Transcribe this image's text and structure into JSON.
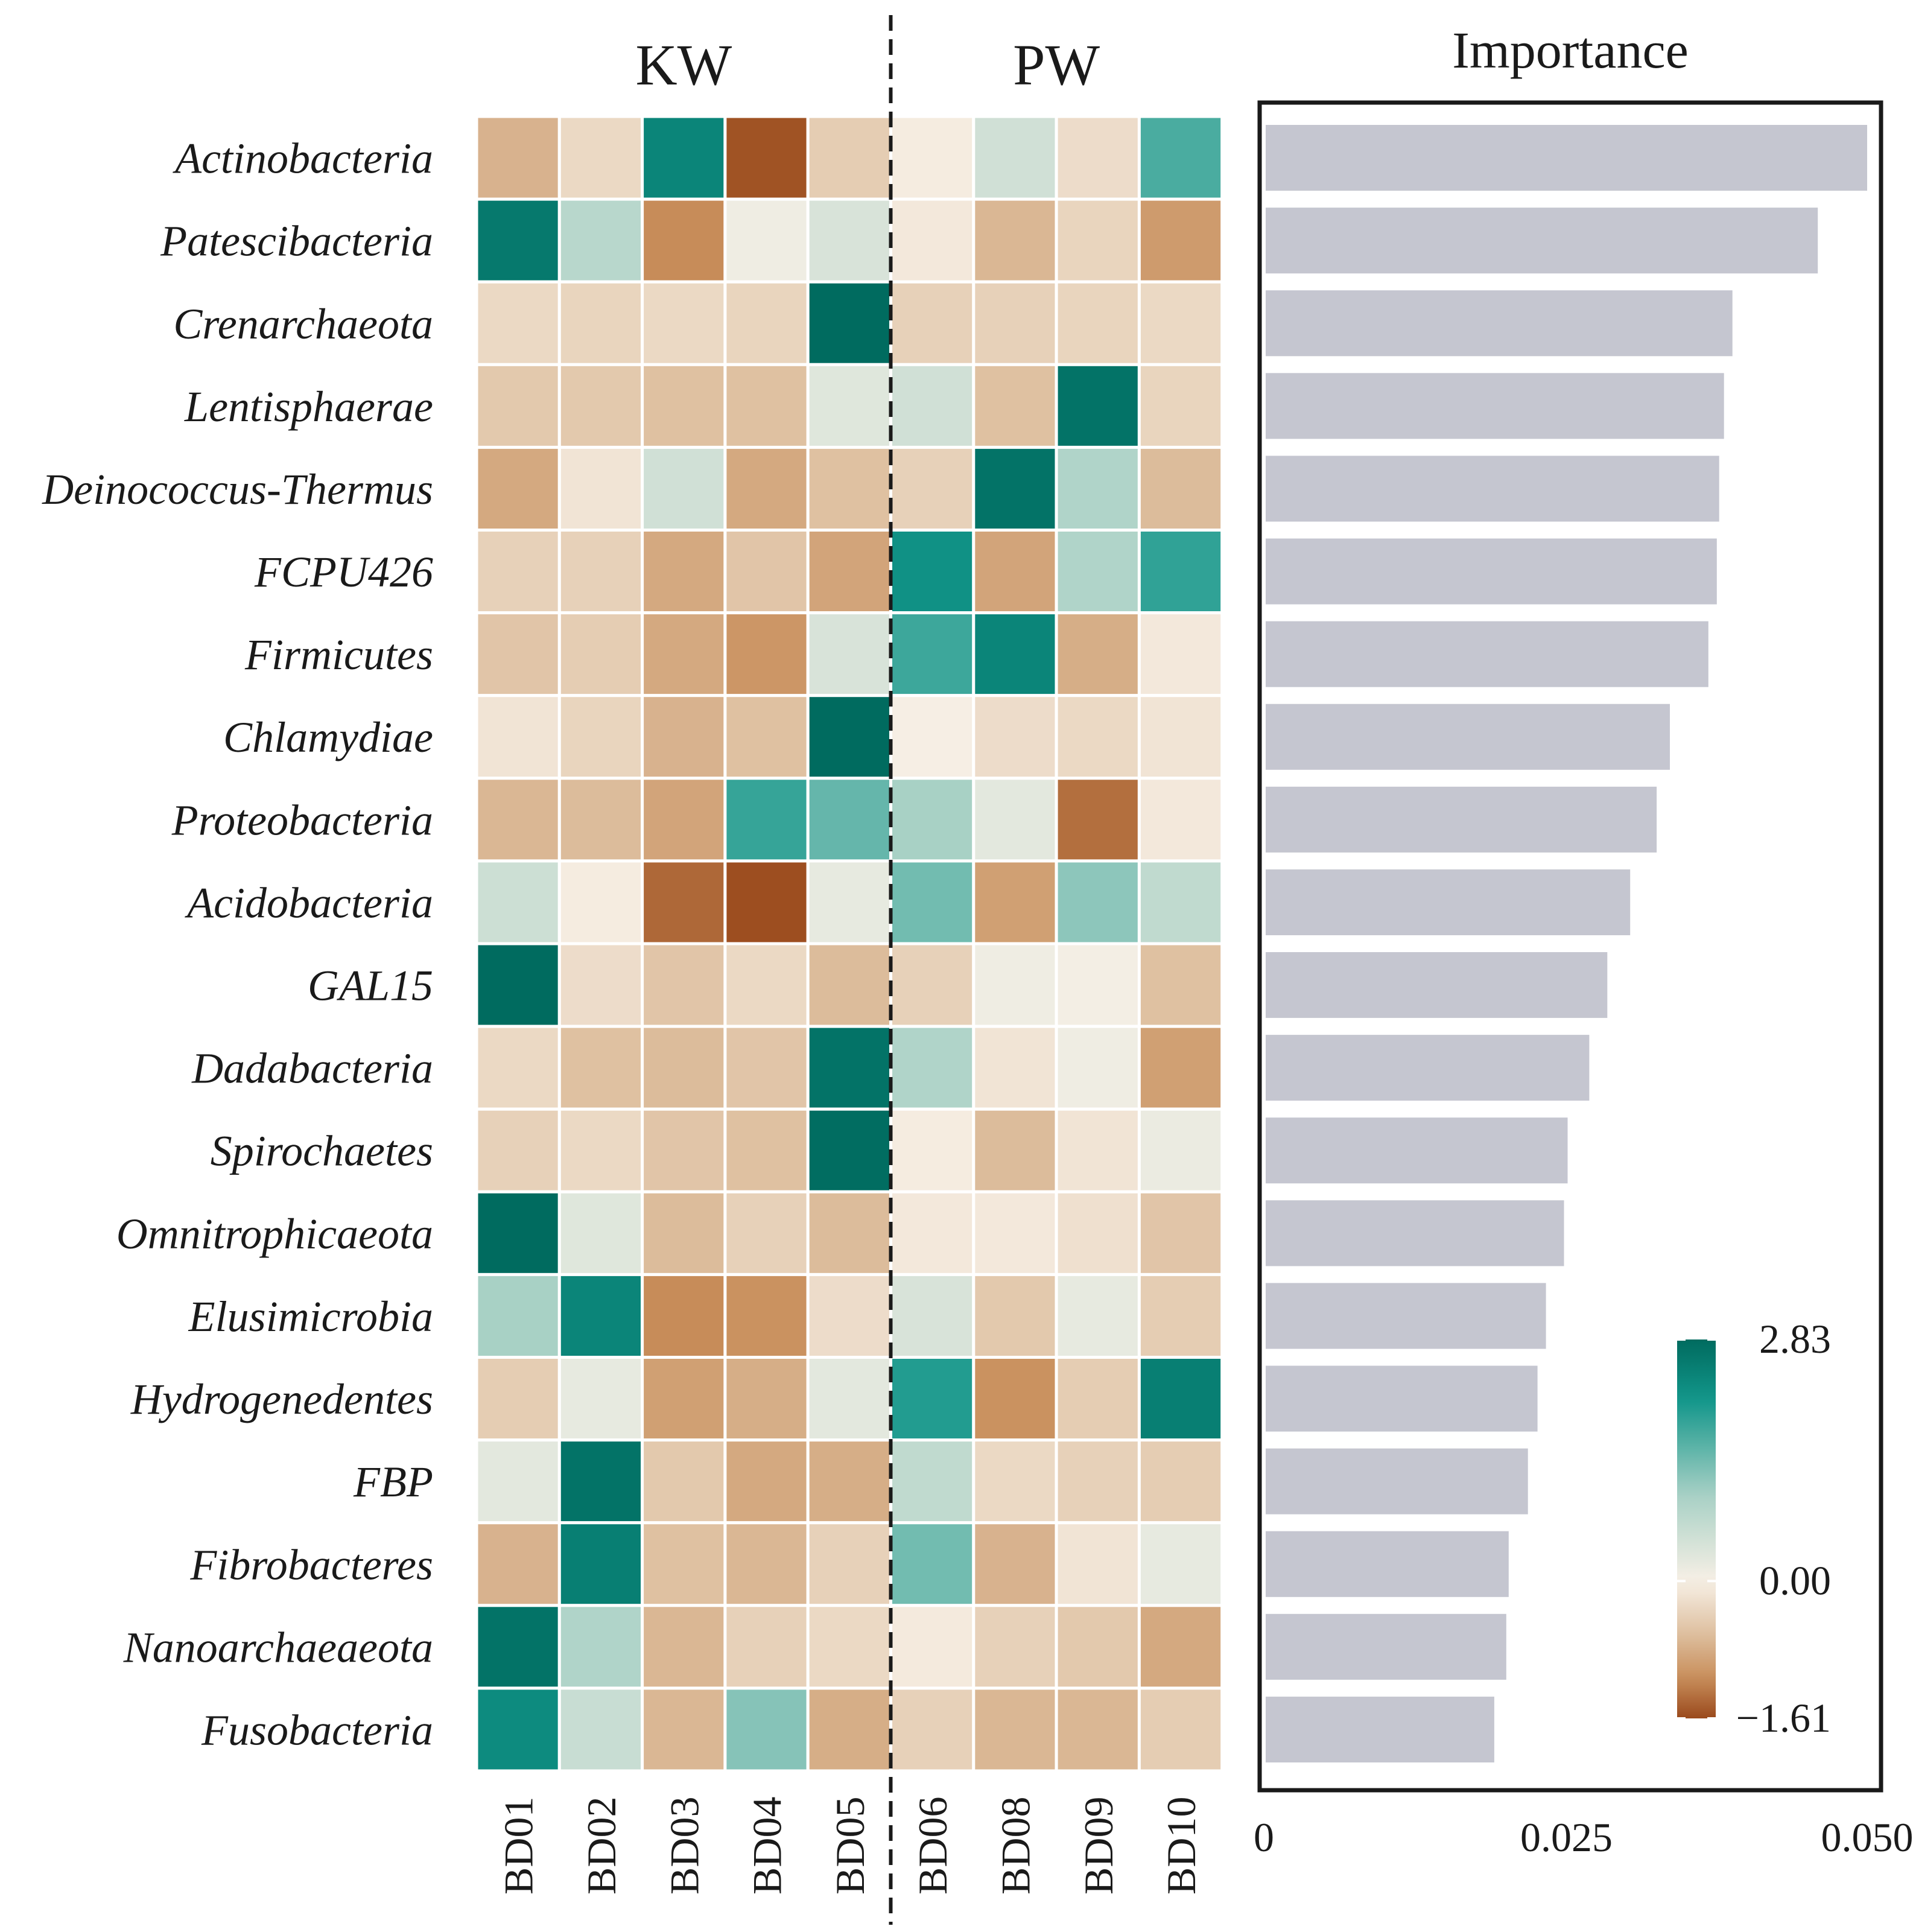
{
  "chart_data": [
    {
      "type": "heatmap",
      "title": "",
      "group_labels": [
        "KW",
        "PW"
      ],
      "columns": [
        "BD01",
        "BD02",
        "BD03",
        "BD04",
        "BD05",
        "BD06",
        "BD08",
        "BD09",
        "BD10"
      ],
      "column_groups": [
        "KW",
        "KW",
        "KW",
        "KW",
        "KW",
        "PW",
        "PW",
        "PW",
        "PW"
      ],
      "rows": [
        "Actinobacteria",
        "Patescibacteria",
        "Crenarchaeota",
        "Lentisphaerae",
        "Deinococcus-Thermus",
        "FCPU426",
        "Firmicutes",
        "Chlamydiae",
        "Proteobacteria",
        "Acidobacteria",
        "GAL15",
        "Dadabacteria",
        "Spirochaetes",
        "Omnitrophicaeota",
        "Elusimicrobia",
        "Hydrogenedentes",
        "FBP",
        "Fibrobacteres",
        "Nanoarchaeaeota",
        "Fusobacteria"
      ],
      "values": [
        [
          -0.75,
          -0.3,
          2.4,
          -1.55,
          -0.45,
          -0.05,
          0.5,
          -0.25,
          1.7
        ],
        [
          2.6,
          0.8,
          -1.15,
          0.1,
          0.4,
          -0.1,
          -0.7,
          -0.35,
          -1.0
        ],
        [
          -0.3,
          -0.35,
          -0.3,
          -0.35,
          2.83,
          -0.4,
          -0.4,
          -0.35,
          -0.3
        ],
        [
          -0.5,
          -0.5,
          -0.6,
          -0.6,
          0.3,
          0.5,
          -0.6,
          2.7,
          -0.35
        ],
        [
          -0.85,
          -0.15,
          0.5,
          -0.85,
          -0.6,
          -0.4,
          2.7,
          0.9,
          -0.65
        ],
        [
          -0.4,
          -0.4,
          -0.85,
          -0.55,
          -0.9,
          2.2,
          -0.9,
          0.9,
          1.9
        ],
        [
          -0.55,
          -0.45,
          -0.85,
          -1.05,
          0.4,
          1.8,
          2.4,
          -0.8,
          -0.1
        ],
        [
          -0.15,
          -0.35,
          -0.75,
          -0.6,
          2.83,
          -0.02,
          -0.25,
          -0.3,
          -0.15
        ],
        [
          -0.7,
          -0.65,
          -0.9,
          1.85,
          1.5,
          1.0,
          0.25,
          -1.35,
          -0.1
        ],
        [
          0.55,
          -0.05,
          -1.4,
          -1.58,
          0.2,
          1.4,
          -0.95,
          1.2,
          0.7
        ],
        [
          2.83,
          -0.25,
          -0.55,
          -0.3,
          -0.65,
          -0.4,
          0.1,
          0.05,
          -0.6
        ],
        [
          -0.3,
          -0.6,
          -0.65,
          -0.55,
          2.7,
          0.9,
          -0.15,
          0.1,
          -0.95
        ],
        [
          -0.4,
          -0.3,
          -0.55,
          -0.6,
          2.8,
          -0.05,
          -0.65,
          -0.15,
          0.15
        ],
        [
          2.83,
          0.3,
          -0.65,
          -0.4,
          -0.65,
          -0.1,
          -0.1,
          -0.2,
          -0.55
        ],
        [
          1.0,
          2.4,
          -1.15,
          -1.1,
          -0.25,
          0.4,
          -0.5,
          0.2,
          -0.45
        ],
        [
          -0.45,
          0.2,
          -0.95,
          -0.8,
          0.25,
          2.0,
          -1.1,
          -0.45,
          2.5
        ],
        [
          0.25,
          2.7,
          -0.5,
          -0.85,
          -0.8,
          0.7,
          -0.3,
          -0.4,
          -0.45
        ],
        [
          -0.75,
          2.5,
          -0.6,
          -0.7,
          -0.4,
          1.4,
          -0.75,
          -0.15,
          0.2
        ],
        [
          2.7,
          0.9,
          -0.7,
          -0.4,
          -0.3,
          -0.08,
          -0.4,
          -0.5,
          -0.85
        ],
        [
          2.3,
          0.6,
          -0.7,
          1.25,
          -0.8,
          -0.4,
          -0.7,
          -0.7,
          -0.45
        ]
      ],
      "color_scale": {
        "min": -1.61,
        "mid": 0.0,
        "max": 2.83,
        "labels": [
          "2.83",
          "0.00",
          "−1.61"
        ],
        "colors": {
          "low": "#9a4a1c",
          "mid": "#f7f0e6",
          "high": "#006b5f"
        }
      }
    },
    {
      "type": "bar",
      "orientation": "horizontal",
      "title": "Importance",
      "categories": [
        "Actinobacteria",
        "Patescibacteria",
        "Crenarchaeota",
        "Lentisphaerae",
        "Deinococcus-Thermus",
        "FCPU426",
        "Firmicutes",
        "Chlamydiae",
        "Proteobacteria",
        "Acidobacteria",
        "GAL15",
        "Dadabacteria",
        "Spirochaetes",
        "Omnitrophicaeota",
        "Elusimicrobia",
        "Hydrogenedentes",
        "FBP",
        "Fibrobacteres",
        "Nanoarchaeaeota",
        "Fusobacteria"
      ],
      "values": [
        0.05,
        0.0459,
        0.0388,
        0.0381,
        0.0377,
        0.0375,
        0.0368,
        0.0336,
        0.0325,
        0.0303,
        0.0284,
        0.0269,
        0.0251,
        0.0248,
        0.0233,
        0.0226,
        0.0218,
        0.0202,
        0.02,
        0.019
      ],
      "xlim": [
        0,
        0.05
      ],
      "xticks": [
        0,
        0.025,
        0.05
      ],
      "xtick_labels": [
        "0",
        "0.025",
        "0.050"
      ],
      "bar_color": "#c5c6d0"
    }
  ]
}
